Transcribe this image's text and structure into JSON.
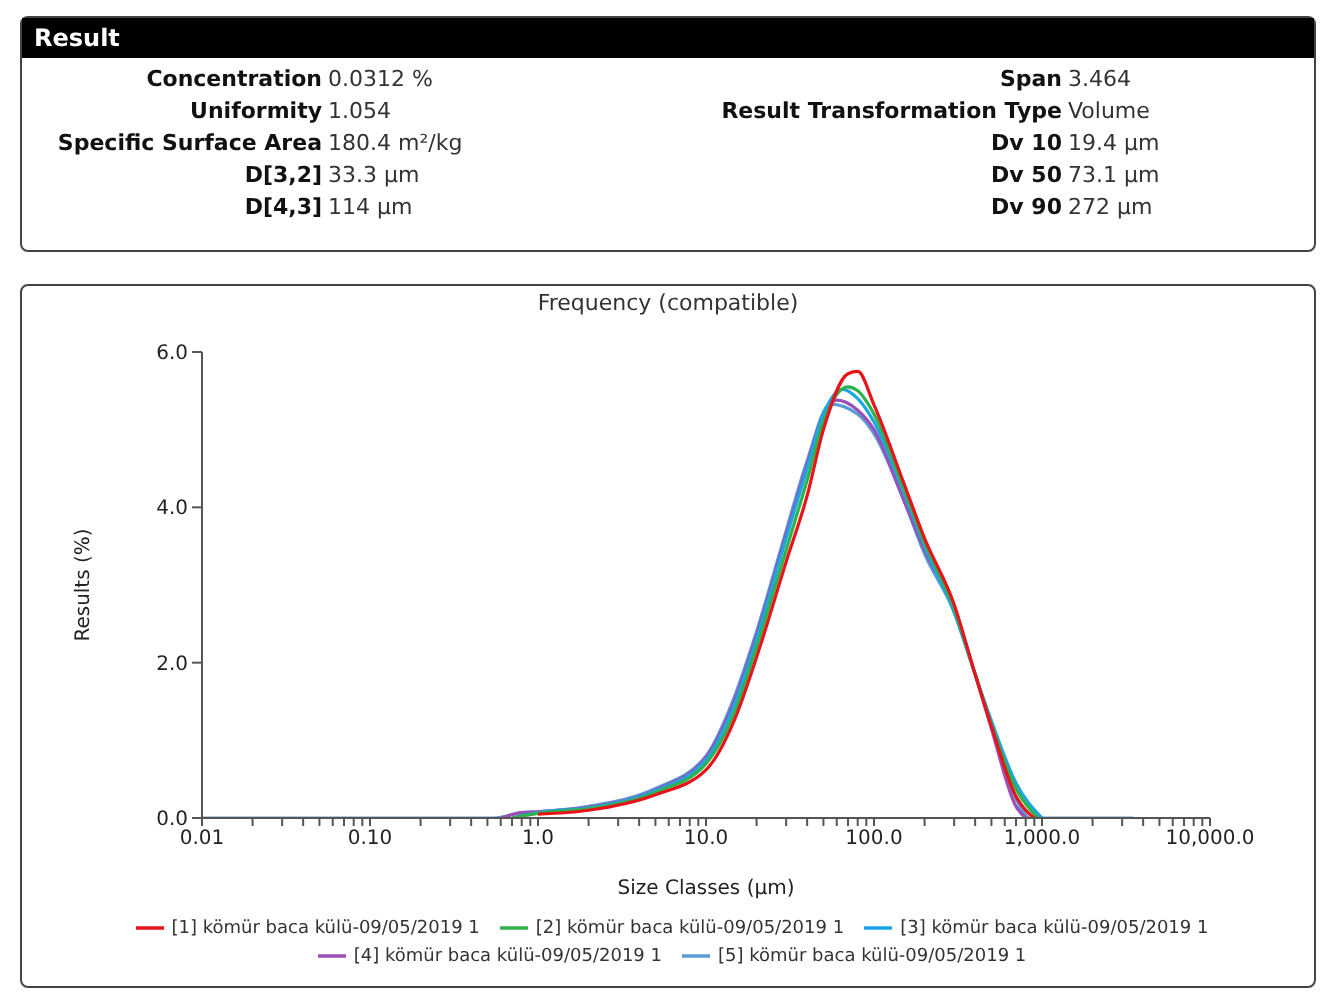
{
  "chart_data": [
    {
      "type": "other",
      "title": "Result",
      "annotations": [
        "Concentration",
        "0.0312 %",
        "Span",
        "3.464",
        "Uniformity",
        "1.054",
        "Result Transformation Type",
        "Volume",
        "Specific Surface Area",
        "180.4 m²/kg",
        "Dv 10",
        "19.4 µm",
        "D[3,2]",
        "33.3 µm",
        "Dv 50",
        "73.1 µm",
        "D[4,3]",
        "114 µm",
        "Dv 90",
        "272 µm"
      ]
    },
    {
      "type": "line",
      "title": "Frequency (compatible)",
      "xlabel": "Size Classes (µm)",
      "ylabel": "Results (%)",
      "log": "x",
      "legend": "bottom",
      "marker": "none",
      "line_style": "solid",
      "xlim": [
        0.01,
        10000
      ],
      "ylim": [
        0,
        6
      ],
      "xticks": [
        {
          "value": 0.01,
          "label": "0.01"
        },
        {
          "value": 0.02,
          "label": null
        },
        {
          "value": 0.03,
          "label": null
        },
        {
          "value": 0.04,
          "label": null
        },
        {
          "value": 0.05,
          "label": null
        },
        {
          "value": 0.06,
          "label": null
        },
        {
          "value": 0.07,
          "label": null
        },
        {
          "value": 0.08,
          "label": null
        },
        {
          "value": 0.09,
          "label": null
        },
        {
          "value": 0.1,
          "label": "0.10"
        },
        {
          "value": 0.2,
          "label": null
        },
        {
          "value": 0.3,
          "label": null
        },
        {
          "value": 0.4,
          "label": null
        },
        {
          "value": 0.5,
          "label": null
        },
        {
          "value": 0.6,
          "label": null
        },
        {
          "value": 0.7,
          "label": null
        },
        {
          "value": 0.8,
          "label": null
        },
        {
          "value": 0.9,
          "label": null
        },
        {
          "value": 1,
          "label": "1.0"
        },
        {
          "value": 2,
          "label": null
        },
        {
          "value": 3,
          "label": null
        },
        {
          "value": 4,
          "label": null
        },
        {
          "value": 5,
          "label": null
        },
        {
          "value": 6,
          "label": null
        },
        {
          "value": 7,
          "label": null
        },
        {
          "value": 8,
          "label": null
        },
        {
          "value": 9,
          "label": null
        },
        {
          "value": 10,
          "label": "10.0"
        },
        {
          "value": 20,
          "label": null
        },
        {
          "value": 30,
          "label": null
        },
        {
          "value": 40,
          "label": null
        },
        {
          "value": 50,
          "label": null
        },
        {
          "value": 60,
          "label": null
        },
        {
          "value": 70,
          "label": null
        },
        {
          "value": 80,
          "label": null
        },
        {
          "value": 90,
          "label": null
        },
        {
          "value": 100,
          "label": "100.0"
        },
        {
          "value": 200,
          "label": null
        },
        {
          "value": 300,
          "label": null
        },
        {
          "value": 400,
          "label": null
        },
        {
          "value": 500,
          "label": null
        },
        {
          "value": 600,
          "label": null
        },
        {
          "value": 700,
          "label": null
        },
        {
          "value": 800,
          "label": null
        },
        {
          "value": 900,
          "label": null
        },
        {
          "value": 1000,
          "label": "1,000.0"
        },
        {
          "value": 2000,
          "label": null
        },
        {
          "value": 3000,
          "label": null
        },
        {
          "value": 4000,
          "label": null
        },
        {
          "value": 5000,
          "label": null
        },
        {
          "value": 6000,
          "label": null
        },
        {
          "value": 7000,
          "label": null
        },
        {
          "value": 8000,
          "label": null
        },
        {
          "value": 9000,
          "label": null
        },
        {
          "value": 10000,
          "label": "10,000.0"
        }
      ],
      "yticks": [
        {
          "value": 0,
          "label": "0.0"
        },
        {
          "value": 2,
          "label": "2.0"
        },
        {
          "value": 4,
          "label": "4.0"
        },
        {
          "value": 6,
          "label": "6.0"
        }
      ],
      "series": [
        {
          "name": "[1] kömür baca külü-09/05/2019 1",
          "color": "#e8141b",
          "x": [
            1,
            2,
            5,
            10,
            15,
            20,
            30,
            40,
            50,
            70,
            80,
            100,
            150,
            200,
            300,
            400,
            500,
            700,
            900
          ],
          "values": [
            0.05,
            0.1,
            0.3,
            0.62,
            1.3,
            2.07,
            3.3,
            4.15,
            5.0,
            5.72,
            5.75,
            5.32,
            4.32,
            3.6,
            2.75,
            1.85,
            1.18,
            0.28,
            0
          ]
        },
        {
          "name": "[2] kömür baca külü-09/05/2019 1",
          "color": "#2db34a",
          "x": [
            0.7,
            1,
            2,
            5,
            10,
            15,
            20,
            30,
            40,
            50,
            70,
            80,
            100,
            150,
            200,
            300,
            400,
            500,
            700,
            950
          ],
          "values": [
            0,
            0.06,
            0.12,
            0.33,
            0.7,
            1.4,
            2.2,
            3.45,
            4.35,
            5.1,
            5.55,
            5.5,
            5.2,
            4.25,
            3.55,
            2.7,
            1.85,
            1.2,
            0.38,
            0
          ]
        },
        {
          "name": "[3] kömür baca külü-09/05/2019 1",
          "color": "#1ba6e6",
          "x": [
            0.7,
            1,
            2,
            5,
            10,
            15,
            20,
            30,
            40,
            50,
            65,
            80,
            100,
            150,
            200,
            300,
            400,
            500,
            700,
            1000
          ],
          "values": [
            0,
            0.07,
            0.13,
            0.35,
            0.75,
            1.5,
            2.3,
            3.6,
            4.5,
            5.2,
            5.52,
            5.4,
            5.1,
            4.2,
            3.5,
            2.65,
            1.85,
            1.25,
            0.45,
            0
          ]
        },
        {
          "name": "[4] kömür baca külü-09/05/2019 1",
          "color": "#9b4fb8",
          "x": [
            0.6,
            0.8,
            1,
            2,
            5,
            10,
            15,
            20,
            30,
            40,
            50,
            60,
            80,
            100,
            150,
            200,
            300,
            400,
            500,
            700,
            800
          ],
          "values": [
            0,
            0.07,
            0.08,
            0.14,
            0.36,
            0.78,
            1.55,
            2.35,
            3.65,
            4.55,
            5.2,
            5.38,
            5.25,
            5.0,
            4.1,
            3.45,
            2.7,
            1.85,
            1.15,
            0.15,
            0
          ]
        },
        {
          "name": "[5] kömür baca külü-09/05/2019 1",
          "color": "#5b9bd5",
          "x": [
            0.01,
            0.55,
            0.8,
            1,
            2,
            5,
            10,
            15,
            20,
            30,
            40,
            55,
            80,
            100,
            150,
            200,
            300,
            400,
            500,
            700,
            850,
            3500
          ],
          "values": [
            0,
            0,
            0.07,
            0.08,
            0.15,
            0.38,
            0.8,
            1.6,
            2.4,
            3.7,
            4.6,
            5.33,
            5.2,
            4.95,
            4.1,
            3.4,
            2.65,
            1.85,
            1.2,
            0.25,
            0,
            0
          ]
        }
      ]
    }
  ]
}
